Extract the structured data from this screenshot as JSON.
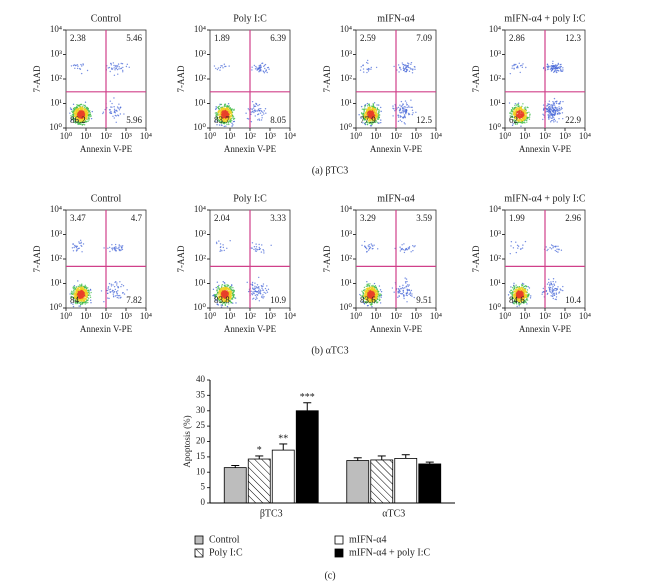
{
  "panels": [
    "(a) βTC3",
    "(b) αTC3",
    "(c)"
  ],
  "chart_data": [
    {
      "type": "flow",
      "title": "Control",
      "xlabel": "Annexin V-PE",
      "ylabel": "7-AAD",
      "log": true,
      "xlim": [
        1,
        10000
      ],
      "ylim": [
        1,
        10000
      ],
      "xticks": [
        {
          "value": 1,
          "label": "10⁰"
        },
        {
          "value": 10,
          "label": "10¹"
        },
        {
          "value": 100,
          "label": "10²"
        },
        {
          "value": 1000,
          "label": "10³"
        },
        {
          "value": 10000,
          "label": "10⁴"
        }
      ],
      "yticks": [
        {
          "value": 1,
          "label": "10⁰"
        },
        {
          "value": 10,
          "label": "10¹"
        },
        {
          "value": 100,
          "label": "10²"
        },
        {
          "value": 1000,
          "label": "10³"
        },
        {
          "value": 10000,
          "label": "10⁴"
        }
      ],
      "gate_x": 100,
      "gate_y": 30,
      "quadrants": [
        2.38,
        5.46,
        86.2,
        5.96
      ]
    },
    {
      "type": "flow",
      "title": "Poly I:C",
      "xlabel": "Annexin V-PE",
      "ylabel": "7-AAD",
      "log": true,
      "xlim": [
        1,
        10000
      ],
      "ylim": [
        1,
        10000
      ],
      "xticks": [
        {
          "value": 1,
          "label": "10⁰"
        },
        {
          "value": 10,
          "label": "10¹"
        },
        {
          "value": 100,
          "label": "10²"
        },
        {
          "value": 1000,
          "label": "10³"
        },
        {
          "value": 10000,
          "label": "10⁴"
        }
      ],
      "yticks": [
        {
          "value": 1,
          "label": "10⁰"
        },
        {
          "value": 10,
          "label": "10¹"
        },
        {
          "value": 100,
          "label": "10²"
        },
        {
          "value": 1000,
          "label": "10³"
        },
        {
          "value": 10000,
          "label": "10⁴"
        }
      ],
      "gate_x": 100,
      "gate_y": 30,
      "quadrants": [
        1.89,
        6.39,
        83.7,
        8.05
      ]
    },
    {
      "type": "flow",
      "title": "mIFN-α4",
      "xlabel": "Annexin V-PE",
      "ylabel": "7-AAD",
      "log": true,
      "xlim": [
        1,
        10000
      ],
      "ylim": [
        1,
        10000
      ],
      "xticks": [
        {
          "value": 1,
          "label": "10⁰"
        },
        {
          "value": 10,
          "label": "10¹"
        },
        {
          "value": 100,
          "label": "10²"
        },
        {
          "value": 1000,
          "label": "10³"
        },
        {
          "value": 10000,
          "label": "10⁴"
        }
      ],
      "yticks": [
        {
          "value": 1,
          "label": "10⁰"
        },
        {
          "value": 10,
          "label": "10¹"
        },
        {
          "value": 100,
          "label": "10²"
        },
        {
          "value": 1000,
          "label": "10³"
        },
        {
          "value": 10000,
          "label": "10⁴"
        }
      ],
      "gate_x": 100,
      "gate_y": 30,
      "quadrants": [
        2.59,
        7.09,
        77.9,
        12.5
      ]
    },
    {
      "type": "flow",
      "title": "mIFN-α4 + poly I:C",
      "xlabel": "Annexin V-PE",
      "ylabel": "7-AAD",
      "log": true,
      "xlim": [
        1,
        10000
      ],
      "ylim": [
        1,
        10000
      ],
      "xticks": [
        {
          "value": 1,
          "label": "10⁰"
        },
        {
          "value": 10,
          "label": "10¹"
        },
        {
          "value": 100,
          "label": "10²"
        },
        {
          "value": 1000,
          "label": "10³"
        },
        {
          "value": 10000,
          "label": "10⁴"
        }
      ],
      "yticks": [
        {
          "value": 1,
          "label": "10⁰"
        },
        {
          "value": 10,
          "label": "10¹"
        },
        {
          "value": 100,
          "label": "10²"
        },
        {
          "value": 1000,
          "label": "10³"
        },
        {
          "value": 10000,
          "label": "10⁴"
        }
      ],
      "gate_x": 100,
      "gate_y": 30,
      "quadrants": [
        2.86,
        12.3,
        62,
        22.9
      ]
    },
    {
      "type": "flow",
      "title": "Control",
      "xlabel": "Annexin V-PE",
      "ylabel": "7-AAD",
      "log": true,
      "xlim": [
        1,
        10000
      ],
      "ylim": [
        1,
        10000
      ],
      "xticks": [
        {
          "value": 1,
          "label": "10⁰"
        },
        {
          "value": 10,
          "label": "10¹"
        },
        {
          "value": 100,
          "label": "10²"
        },
        {
          "value": 1000,
          "label": "10³"
        },
        {
          "value": 10000,
          "label": "10⁴"
        }
      ],
      "yticks": [
        {
          "value": 1,
          "label": "10⁰"
        },
        {
          "value": 10,
          "label": "10¹"
        },
        {
          "value": 100,
          "label": "10²"
        },
        {
          "value": 1000,
          "label": "10³"
        },
        {
          "value": 10000,
          "label": "10⁴"
        }
      ],
      "gate_x": 100,
      "gate_y": 50,
      "quadrants": [
        3.47,
        4.7,
        84,
        7.82
      ]
    },
    {
      "type": "flow",
      "title": "Poly I:C",
      "xlabel": "Annexin V-PE",
      "ylabel": "7-AAD",
      "log": true,
      "xlim": [
        1,
        10000
      ],
      "ylim": [
        1,
        10000
      ],
      "xticks": [
        {
          "value": 1,
          "label": "10⁰"
        },
        {
          "value": 10,
          "label": "10¹"
        },
        {
          "value": 100,
          "label": "10²"
        },
        {
          "value": 1000,
          "label": "10³"
        },
        {
          "value": 10000,
          "label": "10⁴"
        }
      ],
      "yticks": [
        {
          "value": 1,
          "label": "10⁰"
        },
        {
          "value": 10,
          "label": "10¹"
        },
        {
          "value": 100,
          "label": "10²"
        },
        {
          "value": 1000,
          "label": "10³"
        },
        {
          "value": 10000,
          "label": "10⁴"
        }
      ],
      "gate_x": 100,
      "gate_y": 50,
      "quadrants": [
        2.04,
        3.33,
        83.8,
        10.9
      ]
    },
    {
      "type": "flow",
      "title": "mIFN-α4",
      "xlabel": "Annexin V-PE",
      "ylabel": "7-AAD",
      "log": true,
      "xlim": [
        1,
        10000
      ],
      "ylim": [
        1,
        10000
      ],
      "xticks": [
        {
          "value": 1,
          "label": "10⁰"
        },
        {
          "value": 10,
          "label": "10¹"
        },
        {
          "value": 100,
          "label": "10²"
        },
        {
          "value": 1000,
          "label": "10³"
        },
        {
          "value": 10000,
          "label": "10⁴"
        }
      ],
      "yticks": [
        {
          "value": 1,
          "label": "10⁰"
        },
        {
          "value": 10,
          "label": "10¹"
        },
        {
          "value": 100,
          "label": "10²"
        },
        {
          "value": 1000,
          "label": "10³"
        },
        {
          "value": 10000,
          "label": "10⁴"
        }
      ],
      "gate_x": 100,
      "gate_y": 50,
      "quadrants": [
        3.29,
        3.59,
        83.6,
        9.51
      ]
    },
    {
      "type": "flow",
      "title": "mIFN-α4 + poly I:C",
      "xlabel": "Annexin V-PE",
      "ylabel": "7-AAD",
      "log": true,
      "xlim": [
        1,
        10000
      ],
      "ylim": [
        1,
        10000
      ],
      "xticks": [
        {
          "value": 1,
          "label": "10⁰"
        },
        {
          "value": 10,
          "label": "10¹"
        },
        {
          "value": 100,
          "label": "10²"
        },
        {
          "value": 1000,
          "label": "10³"
        },
        {
          "value": 10000,
          "label": "10⁴"
        }
      ],
      "yticks": [
        {
          "value": 1,
          "label": "10⁰"
        },
        {
          "value": 10,
          "label": "10¹"
        },
        {
          "value": 100,
          "label": "10²"
        },
        {
          "value": 1000,
          "label": "10³"
        },
        {
          "value": 10000,
          "label": "10⁴"
        }
      ],
      "gate_x": 100,
      "gate_y": 50,
      "quadrants": [
        1.99,
        2.96,
        84.6,
        10.4
      ]
    },
    {
      "type": "bar",
      "ylabel": "Apoptosis (%)",
      "categories": [
        "βTC3",
        "αTC3"
      ],
      "ylim": [
        0,
        40
      ],
      "yticks": [
        0,
        5,
        10,
        15,
        20,
        25,
        30,
        35,
        40
      ],
      "series": [
        {
          "name": "Control",
          "color": "#bdbdbd",
          "values": [
            11.5,
            13.8
          ],
          "errors": [
            0.7,
            0.9
          ]
        },
        {
          "name": "Poly I:C",
          "color": "hatch",
          "values": [
            14.3,
            14
          ],
          "errors": [
            1,
            1.3
          ]
        },
        {
          "name": "mIFN-α4",
          "color": "#ffffff",
          "values": [
            17.2,
            14.5
          ],
          "errors": [
            2,
            1.2
          ]
        },
        {
          "name": "mIFN-α4 + poly I:C",
          "color": "#000000",
          "values": [
            30,
            12.7
          ],
          "errors": [
            2.6,
            0.6
          ]
        }
      ],
      "annotations": [
        {
          "text": "*",
          "series": 1,
          "category": 0
        },
        {
          "text": "**",
          "series": 2,
          "category": 0
        },
        {
          "text": "***",
          "series": 3,
          "category": 0
        }
      ]
    }
  ]
}
